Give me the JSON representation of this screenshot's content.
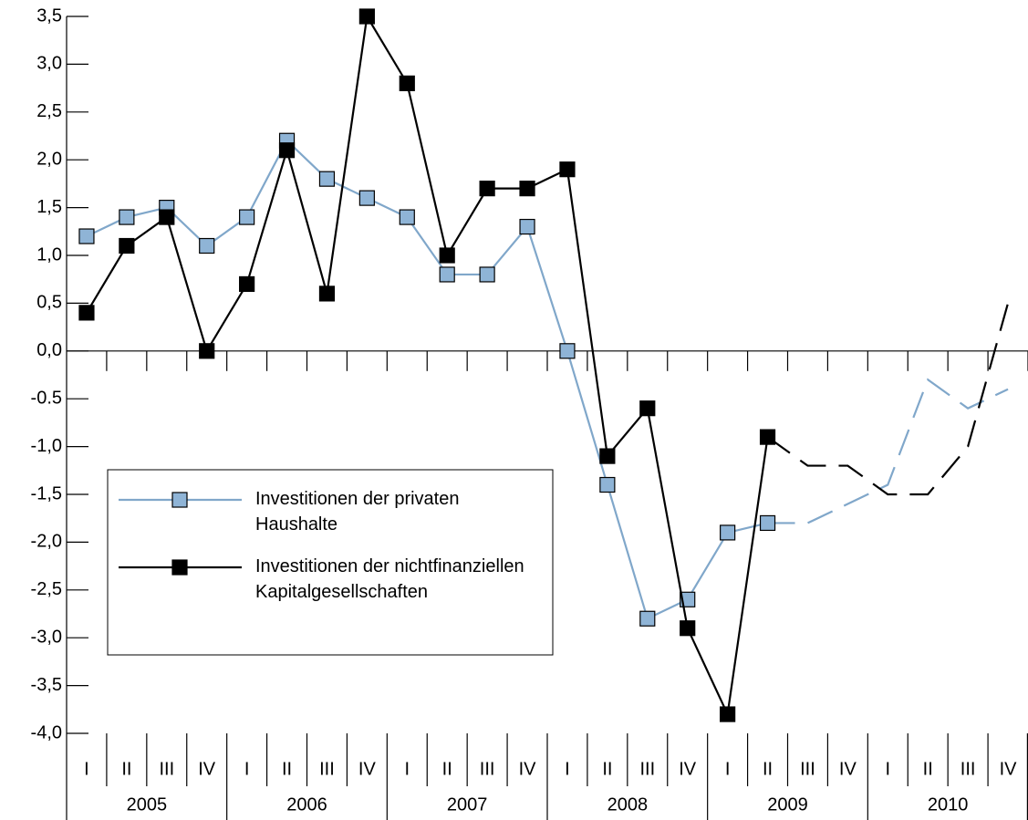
{
  "chart_data": {
    "type": "line",
    "categories": [
      "I",
      "II",
      "III",
      "IV",
      "I",
      "II",
      "III",
      "IV",
      "I",
      "II",
      "III",
      "IV",
      "I",
      "II",
      "III",
      "IV",
      "I",
      "II",
      "III",
      "IV",
      "I",
      "II",
      "III",
      "IV"
    ],
    "years": [
      "2005",
      "2006",
      "2007",
      "2008",
      "2009",
      "2010"
    ],
    "series": [
      {
        "name": "Investitionen der privaten Haushalte",
        "color": "#80a7ca",
        "marker_color": "#8fb4d6",
        "values": [
          1.2,
          1.4,
          1.5,
          1.1,
          1.4,
          2.2,
          1.8,
          1.6,
          1.4,
          0.8,
          0.8,
          1.3,
          0.0,
          -1.4,
          -2.8,
          -2.6,
          -1.9,
          -1.8,
          -1.8,
          -1.6,
          -1.4,
          -0.3,
          -0.6,
          -0.4
        ]
      },
      {
        "name": "Investitionen der nichtfinanziellen Kapitalgesellschaften",
        "color": "#000000",
        "marker_color": "#000000",
        "values": [
          0.4,
          1.1,
          1.4,
          0.0,
          0.7,
          2.1,
          0.6,
          3.5,
          2.8,
          1.0,
          1.7,
          1.7,
          1.9,
          -1.1,
          -0.6,
          -2.9,
          -3.8,
          -0.9,
          -1.2,
          -1.2,
          -1.5,
          -1.5,
          -1.0,
          0.5
        ]
      }
    ],
    "forecast_from": 17,
    "ylim": [
      -4.0,
      3.5
    ],
    "yticks": [
      {
        "value": 3.5,
        "label": "3,5"
      },
      {
        "value": 3.0,
        "label": "3,0"
      },
      {
        "value": 2.5,
        "label": "2,5"
      },
      {
        "value": 2.0,
        "label": "2,0"
      },
      {
        "value": 1.5,
        "label": "1,5"
      },
      {
        "value": 1.0,
        "label": "1,0"
      },
      {
        "value": 0.5,
        "label": "0,5"
      },
      {
        "value": 0.0,
        "label": "0,0"
      },
      -0.5,
      {
        "value": -1.0,
        "label": "-1,0"
      },
      {
        "value": -1.5,
        "label": "-1,5"
      },
      {
        "value": -2.0,
        "label": "-2,0"
      },
      {
        "value": -2.5,
        "label": "-2,5"
      },
      {
        "value": -3.0,
        "label": "-3,0"
      },
      {
        "value": -3.5,
        "label": "-3,5"
      },
      {
        "value": -4.0,
        "label": "-4,0"
      }
    ]
  }
}
